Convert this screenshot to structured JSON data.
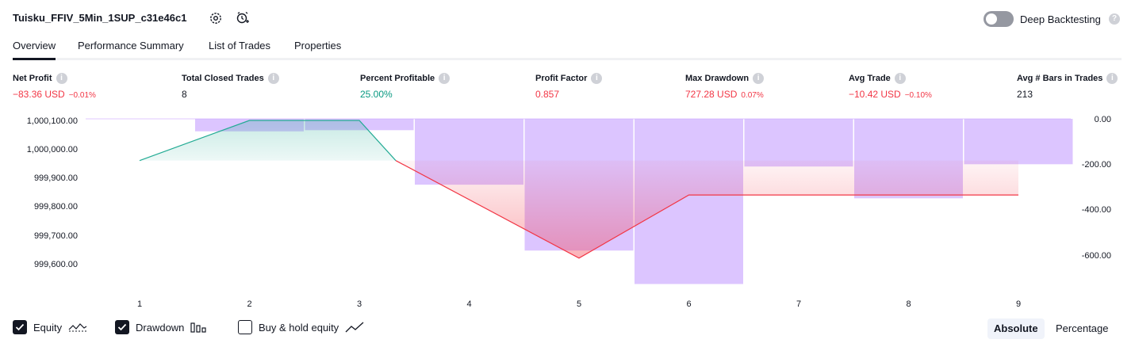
{
  "header": {
    "strategy_name": "Tuisku_FFIV_5Min_1SUP_c31e46c1",
    "settings_icon": "gear-icon",
    "alert_icon": "add-alarm-icon",
    "deep_backtesting_label": "Deep Backtesting",
    "deep_backtesting_enabled": false
  },
  "tabs": [
    {
      "label": "Overview",
      "active": true
    },
    {
      "label": "Performance Summary",
      "active": false
    },
    {
      "label": "List of Trades",
      "active": false
    },
    {
      "label": "Properties",
      "active": false
    }
  ],
  "stats": [
    {
      "label": "Net Profit",
      "value": "−83.36 USD",
      "pct": "−0.01%",
      "tone": "neg"
    },
    {
      "label": "Total Closed Trades",
      "value": "8",
      "pct": "",
      "tone": "neu"
    },
    {
      "label": "Percent Profitable",
      "value": "25.00%",
      "pct": "",
      "tone": "pos"
    },
    {
      "label": "Profit Factor",
      "value": "0.857",
      "pct": "",
      "tone": "neg"
    },
    {
      "label": "Max Drawdown",
      "value": "727.28 USD",
      "pct": "0.07%",
      "tone": "neg"
    },
    {
      "label": "Avg Trade",
      "value": "−10.42 USD",
      "pct": "−0.10%",
      "tone": "neg"
    },
    {
      "label": "Avg # Bars in Trades",
      "value": "213",
      "pct": "",
      "tone": "neu"
    }
  ],
  "chart_data": {
    "type": "line",
    "x": [
      1,
      2,
      3,
      4,
      5,
      6,
      7,
      8,
      9
    ],
    "series": [
      {
        "name": "Equity",
        "axis": "left",
        "values": [
          999960,
          1000100,
          1000100,
          null,
          999620,
          999840,
          999840,
          999840,
          999840
        ]
      },
      {
        "name": "Drawdown",
        "axis": "right",
        "type": "bar",
        "values": [
          0,
          -55,
          -50,
          -290,
          -580,
          -727.28,
          -210,
          -350,
          -200
        ]
      }
    ],
    "left_axis": {
      "ticks": [
        "1,000,100.00",
        "1,000,000.00",
        "999,900.00",
        "999,800.00",
        "999,700.00",
        "999,600.00"
      ],
      "range": [
        999580,
        1000100
      ]
    },
    "right_axis": {
      "ticks": [
        "0.00",
        "-200.00",
        "-400.00",
        "-600.00"
      ],
      "range": [
        -727.28,
        0
      ]
    },
    "x_ticks": [
      "1",
      "2",
      "3",
      "4",
      "5",
      "6",
      "7",
      "8",
      "9"
    ],
    "colors": {
      "equity_up": "#22ab94",
      "equity_down": "#f23645",
      "drawdown_bar": "#c9a6ff",
      "fill_up": "#d6efe9",
      "fill_down": "#fbb1b6"
    }
  },
  "legend": {
    "items": [
      {
        "label": "Equity",
        "checked": true,
        "icon": "equity-line-icon"
      },
      {
        "label": "Drawdown",
        "checked": true,
        "icon": "bars-icon"
      },
      {
        "label": "Buy & hold equity",
        "checked": false,
        "icon": "trend-line-icon"
      }
    ],
    "modes": [
      {
        "label": "Absolute",
        "active": true
      },
      {
        "label": "Percentage",
        "active": false
      }
    ]
  }
}
